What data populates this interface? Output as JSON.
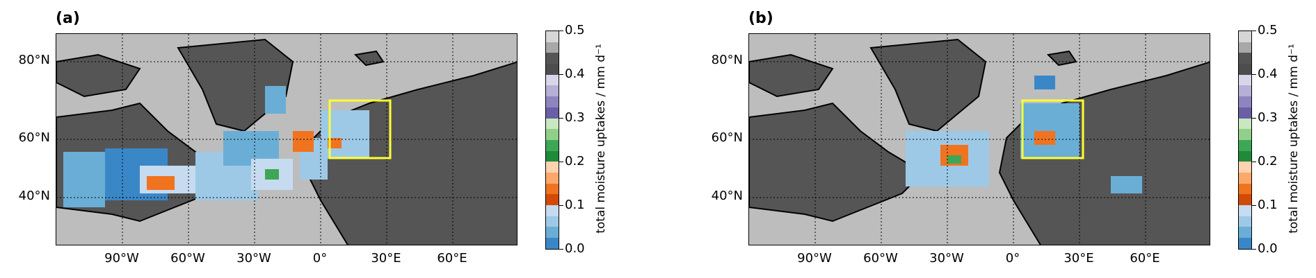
{
  "panels": [
    {
      "label": "(a)",
      "lat_labels": [
        "80°N",
        "60°N",
        "40°N"
      ],
      "lon_labels": [
        "90°W",
        "60°W",
        "30°W",
        "0°",
        "30°E",
        "60°E"
      ]
    },
    {
      "label": "(b)",
      "lat_labels": [
        "80°N",
        "60°N",
        "40°N"
      ],
      "lon_labels": [
        "90°W",
        "60°W",
        "30°W",
        "0°",
        "30°E",
        "60°E"
      ]
    }
  ],
  "colorbar": {
    "title": "total moisture uptakes / mm d⁻¹",
    "ticks": [
      "0.5",
      "0.4",
      "0.3",
      "0.2",
      "0.1",
      "0.0"
    ],
    "colors": [
      "#d6d6d6",
      "#a8a8a8",
      "#555555",
      "#4d4d4d",
      "#d9d6ea",
      "#b6b0d6",
      "#8e85c0",
      "#6a5ea6",
      "#c7e8c0",
      "#90d08a",
      "#3ea755",
      "#1e8a3a",
      "#fcd2b0",
      "#fca86b",
      "#f0731f",
      "#d34a06",
      "#c6dbef",
      "#9ec9e6",
      "#6aaed6",
      "#3a87c7"
    ],
    "range": [
      0.0,
      0.5
    ]
  },
  "colors": {
    "land": "#555555",
    "ocean": "#bdbdbd",
    "box": "#ffff33"
  }
}
